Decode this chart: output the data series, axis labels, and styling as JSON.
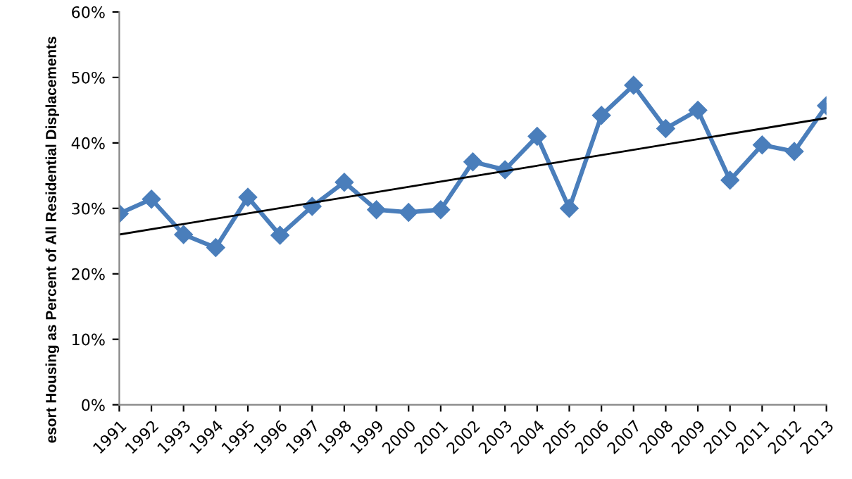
{
  "chart_data": {
    "type": "line",
    "ylabel": "esort Housing as Percent of All Residential Displacements",
    "categories": [
      "1991",
      "1992",
      "1993",
      "1994",
      "1995",
      "1996",
      "1997",
      "1998",
      "1999",
      "2000",
      "2001",
      "2002",
      "2003",
      "2004",
      "2005",
      "2006",
      "2007",
      "2008",
      "2009",
      "2010",
      "2011",
      "2012",
      "2013"
    ],
    "series": [
      {
        "color": "#4a7ebb",
        "marker": "diamond",
        "values": [
          29.2,
          31.4,
          26.0,
          24.0,
          31.7,
          25.9,
          30.3,
          34.0,
          29.8,
          29.4,
          29.8,
          37.1,
          35.9,
          41.0,
          30.0,
          44.2,
          48.8,
          42.2,
          45.0,
          34.3,
          39.7,
          38.7,
          45.7
        ]
      },
      {
        "type": "line",
        "color": "#000000",
        "marker": "none",
        "values": [
          26.0,
          null,
          null,
          null,
          null,
          null,
          null,
          null,
          null,
          null,
          null,
          null,
          null,
          null,
          null,
          null,
          null,
          null,
          null,
          null,
          null,
          null,
          43.8
        ]
      }
    ],
    "ylim": [
      0,
      60
    ],
    "yticks": [
      {
        "value": 0,
        "label": "0%"
      },
      {
        "value": 10,
        "label": "10%"
      },
      {
        "value": 20,
        "label": "20%"
      },
      {
        "value": 30,
        "label": "30%"
      },
      {
        "value": 40,
        "label": "40%"
      },
      {
        "value": 50,
        "label": "50%"
      },
      {
        "value": 60,
        "label": "60%"
      }
    ],
    "grid": false,
    "legend": false
  }
}
